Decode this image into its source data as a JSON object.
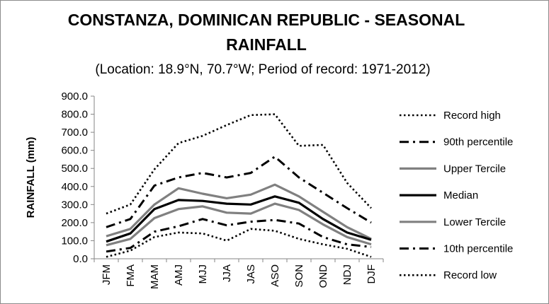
{
  "chart_data": {
    "type": "line",
    "title_line1": "CONSTANZA, DOMINICAN REPUBLIC - SEASONAL",
    "title_line2": "RAINFALL",
    "subtitle": "(Location: 18.9°N, 70.7°W; Period of record: 1971-2012)",
    "ylabel": "RAINFALL (mm)",
    "xlabel": "",
    "ylim": [
      0,
      900
    ],
    "yticks": [
      "0.0",
      "100.0",
      "200.0",
      "300.0",
      "400.0",
      "500.0",
      "600.0",
      "700.0",
      "800.0",
      "900.0"
    ],
    "categories": [
      "JFM",
      "FMA",
      "MAM",
      "AMJ",
      "MJJ",
      "JJA",
      "JAS",
      "ASO",
      "SON",
      "OND",
      "NDJ",
      "DJF"
    ],
    "grid": false,
    "legend_position": "right",
    "series": [
      {
        "name": "Record high",
        "style": "dotted",
        "color": "#000000",
        "values": [
          250,
          300,
          495,
          640,
          680,
          740,
          795,
          800,
          625,
          630,
          420,
          280
        ]
      },
      {
        "name": "90th percentile",
        "style": "dashdot",
        "color": "#000000",
        "values": [
          175,
          220,
          405,
          450,
          475,
          450,
          475,
          565,
          450,
          365,
          280,
          200
        ]
      },
      {
        "name": "Upper Tercile",
        "style": "solid-gray",
        "color": "#808080",
        "values": [
          125,
          165,
          300,
          390,
          360,
          335,
          355,
          410,
          345,
          260,
          175,
          110
        ]
      },
      {
        "name": "Median",
        "style": "solid",
        "color": "#000000",
        "values": [
          95,
          140,
          275,
          325,
          320,
          305,
          300,
          345,
          310,
          220,
          145,
          105
        ]
      },
      {
        "name": "Lower Tercile",
        "style": "solid-gray",
        "color": "#808080",
        "values": [
          75,
          110,
          225,
          275,
          290,
          255,
          250,
          305,
          270,
          190,
          120,
          80
        ]
      },
      {
        "name": "10th percentile",
        "style": "dashdot",
        "color": "#000000",
        "values": [
          40,
          60,
          150,
          180,
          220,
          185,
          205,
          215,
          195,
          120,
          80,
          65
        ]
      },
      {
        "name": "Record low",
        "style": "dotted",
        "color": "#000000",
        "values": [
          10,
          45,
          120,
          145,
          140,
          100,
          165,
          155,
          110,
          80,
          55,
          10
        ]
      }
    ]
  }
}
